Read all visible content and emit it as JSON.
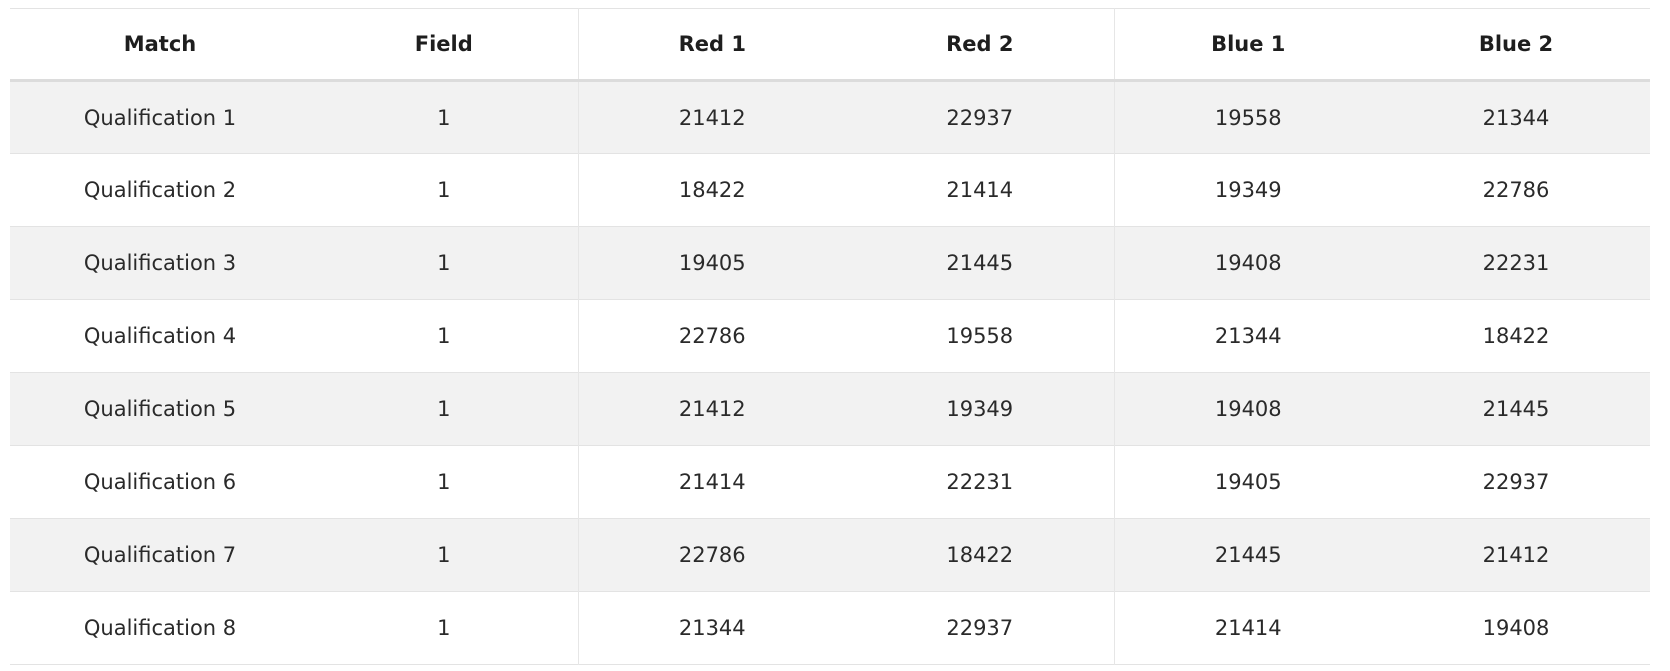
{
  "table": {
    "columns": [
      "Match",
      "Field",
      "Red 1",
      "Red 2",
      "Blue 1",
      "Blue 2"
    ],
    "rows": [
      {
        "match": "Qualification 1",
        "field": "1",
        "red1": "21412",
        "red2": "22937",
        "blue1": "19558",
        "blue2": "21344"
      },
      {
        "match": "Qualification 2",
        "field": "1",
        "red1": "18422",
        "red2": "21414",
        "blue1": "19349",
        "blue2": "22786"
      },
      {
        "match": "Qualification 3",
        "field": "1",
        "red1": "19405",
        "red2": "21445",
        "blue1": "19408",
        "blue2": "22231"
      },
      {
        "match": "Qualification 4",
        "field": "1",
        "red1": "22786",
        "red2": "19558",
        "blue1": "21344",
        "blue2": "18422"
      },
      {
        "match": "Qualification 5",
        "field": "1",
        "red1": "21412",
        "red2": "19349",
        "blue1": "19408",
        "blue2": "21445"
      },
      {
        "match": "Qualification 6",
        "field": "1",
        "red1": "21414",
        "red2": "22231",
        "blue1": "19405",
        "blue2": "22937"
      },
      {
        "match": "Qualification 7",
        "field": "1",
        "red1": "22786",
        "red2": "18422",
        "blue1": "21445",
        "blue2": "21412"
      },
      {
        "match": "Qualification 8",
        "field": "1",
        "red1": "21344",
        "red2": "22937",
        "blue1": "21414",
        "blue2": "19408"
      }
    ]
  }
}
